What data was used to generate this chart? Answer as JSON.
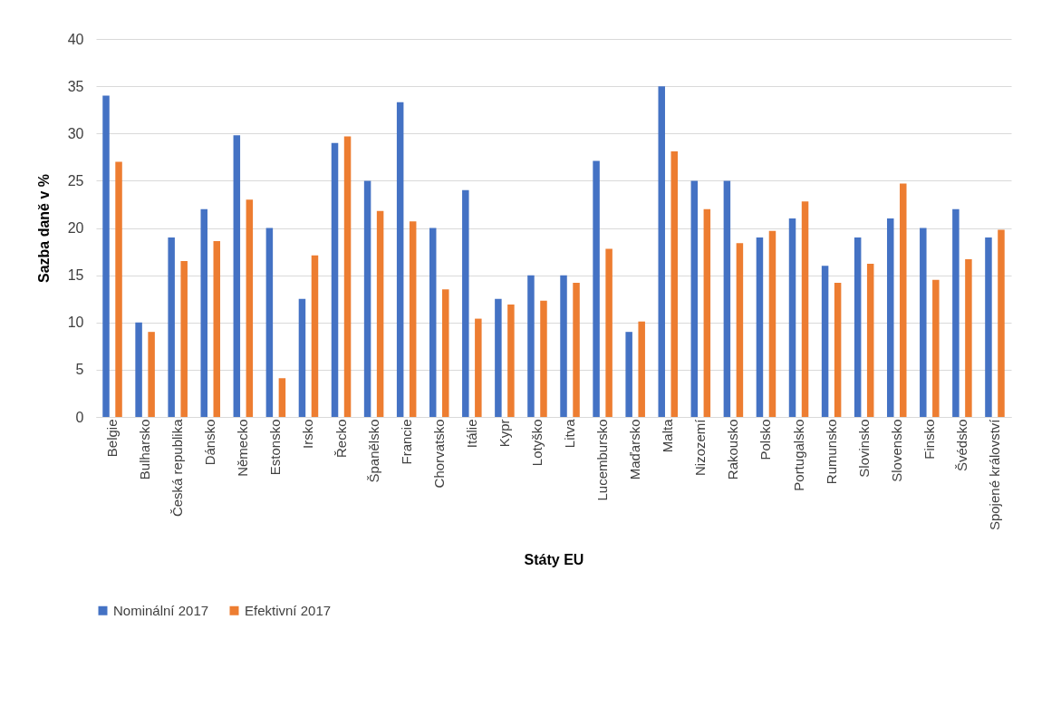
{
  "chart_data": {
    "type": "bar",
    "xlabel": "Státy EU",
    "ylabel": "Sazba daně v %",
    "categories": [
      "Belgie",
      "Bulharsko",
      "Česká republika",
      "Dánsko",
      "Německo",
      "Estonsko",
      "Irsko",
      "Řecko",
      "Španělsko",
      "Francie",
      "Chorvatsko",
      "Itálie",
      "Kypr",
      "Lotyško",
      "Litva",
      "Lucembursko",
      "Maďarsko",
      "Malta",
      "Nizozemí",
      "Rakousko",
      "Polsko",
      "Portugalsko",
      "Rumunsko",
      "Slovinsko",
      "Slovensko",
      "Finsko",
      "Švédsko",
      "Spojené království"
    ],
    "series": [
      {
        "name": "Nominální 2017",
        "color": "#4472c4",
        "values": [
          34,
          10,
          19,
          22,
          29.8,
          20,
          12.5,
          29,
          25,
          33.3,
          20,
          24,
          12.5,
          15,
          15,
          27.1,
          9,
          35,
          25,
          25,
          19,
          21,
          16,
          19,
          21,
          20,
          22,
          19
        ]
      },
      {
        "name": "Efektivní 2017",
        "color": "#ed7d31",
        "values": [
          27,
          9,
          16.5,
          18.6,
          23,
          4.1,
          17.1,
          29.7,
          21.8,
          20.7,
          13.5,
          10.4,
          11.9,
          12.3,
          14.2,
          17.8,
          10.1,
          28.1,
          22,
          18.4,
          19.7,
          22.8,
          14.2,
          16.2,
          24.7,
          14.5,
          16.7,
          19.8
        ]
      }
    ],
    "ylim": [
      0,
      40
    ],
    "yticks": [
      0,
      5,
      10,
      15,
      20,
      25,
      30,
      35,
      40
    ],
    "grid": "y",
    "legend": "bottom"
  }
}
